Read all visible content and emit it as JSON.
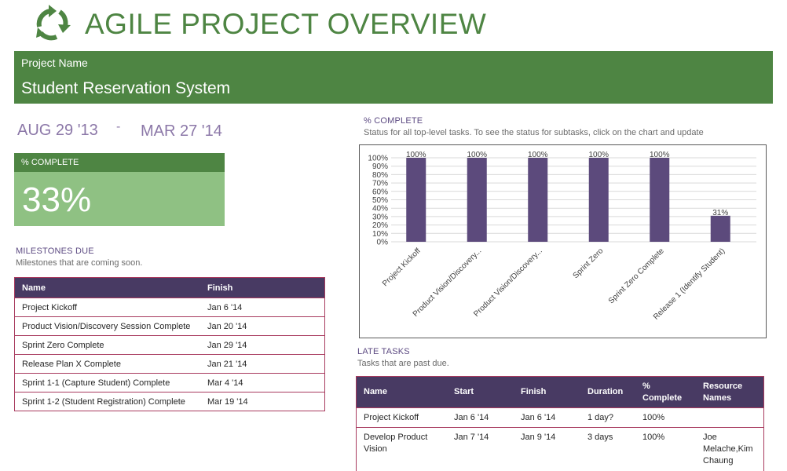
{
  "header": {
    "title": "AGILE PROJECT OVERVIEW",
    "project_label": "Project Name",
    "project_name": "Student Reservation System",
    "logo_icon": "recycle-arrows-icon",
    "colors": {
      "green": "#4e8543",
      "light_green": "#8fc183",
      "purple": "#483a63",
      "bar": "#5c4a7c"
    }
  },
  "dates": {
    "start": "AUG 29 '13",
    "separator": "-",
    "end": "MAR 27 '14"
  },
  "percent_complete_card": {
    "label": "% COMPLETE",
    "value": "33%"
  },
  "milestones": {
    "title": "MILESTONES DUE",
    "subtitle": "Milestones that are coming soon.",
    "columns": [
      "Name",
      "Finish"
    ],
    "rows": [
      [
        "Project Kickoff",
        "Jan 6 '14"
      ],
      [
        "Product Vision/Discovery Session Complete",
        "Jan 20 '14"
      ],
      [
        "Sprint Zero Complete",
        "Jan 29 '14"
      ],
      [
        "Release Plan X Complete",
        "Jan 21 '14"
      ],
      [
        "Sprint 1-1 (Capture Student) Complete",
        "Mar 4 '14"
      ],
      [
        "Sprint 1-2 (Student Registration) Complete",
        "Mar 19 '14"
      ]
    ]
  },
  "status_chart": {
    "title": "% COMPLETE",
    "subtitle": "Status for all top-level tasks. To see the status for subtasks, click on the chart and update"
  },
  "chart_data": {
    "type": "bar",
    "categories": [
      "Project Kickoff",
      "Product Vision/Discovery...",
      "Product Vision/Discovery...",
      "Sprint Zero",
      "Sprint Zero Complete",
      "Release 1 (Identify Student)"
    ],
    "values": [
      100,
      100,
      100,
      100,
      100,
      31
    ],
    "data_labels": [
      "100%",
      "100%",
      "100%",
      "100%",
      "100%",
      "31%"
    ],
    "y_ticks": [
      "0%",
      "10%",
      "20%",
      "30%",
      "40%",
      "50%",
      "60%",
      "70%",
      "80%",
      "90%",
      "100%"
    ],
    "ylim": [
      0,
      100
    ],
    "grid": true
  },
  "late_tasks": {
    "title": "LATE TASKS",
    "subtitle": "Tasks that are past due.",
    "columns": [
      "Name",
      "Start",
      "Finish",
      "Duration",
      "% Complete",
      "Resource Names"
    ],
    "rows": [
      [
        "Project Kickoff",
        "Jan 6 '14",
        "Jan 6 '14",
        "1 day?",
        "100%",
        ""
      ],
      [
        "Develop Product Vision",
        "Jan 7 '14",
        "Jan 9 '14",
        "3 days",
        "100%",
        "Joe Melache,Kim Chaung"
      ]
    ]
  }
}
